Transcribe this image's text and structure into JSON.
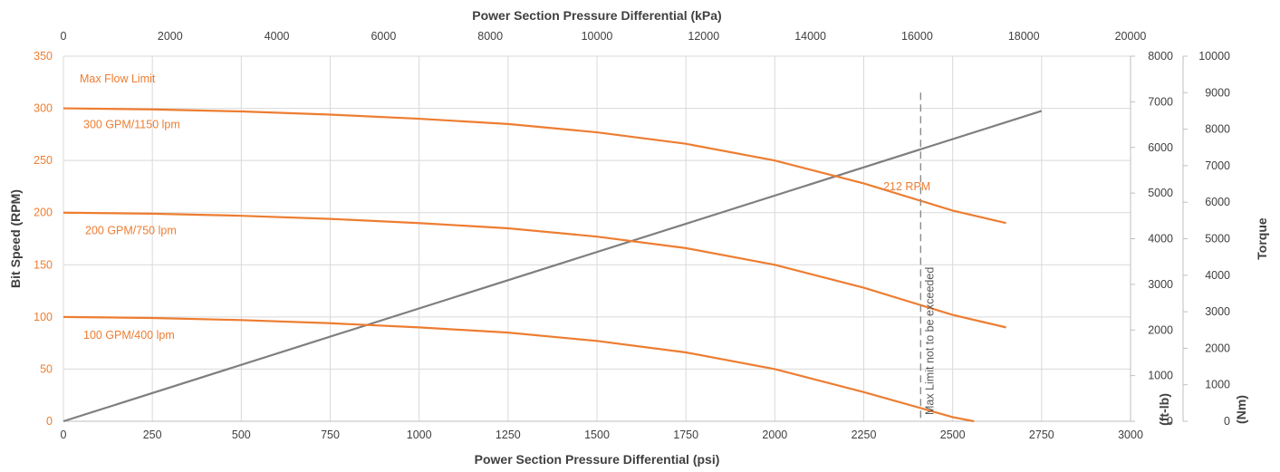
{
  "colors": {
    "speed": "#ed7d31",
    "torque": "#7f7f7f",
    "grid": "#d9d9d9",
    "axis_text": "#404040",
    "limit_line": "#8c8c8c"
  },
  "chart_data": {
    "type": "line",
    "title": "",
    "xlabel": "Power Section Pressure Differential (psi)",
    "x2label": "Power Section Pressure Differential (kPa)",
    "ylabel": "Bit Speed (RPM)",
    "y2label": "Torque",
    "y2unit_ftlb": "(ft-lb)",
    "y3unit_nm": "(Nm)",
    "xlim": [
      0,
      3000
    ],
    "x2lim": [
      0,
      20000
    ],
    "ylim": [
      0,
      350
    ],
    "y2lim": [
      0,
      8000
    ],
    "y3lim": [
      0,
      10000
    ],
    "x_ticks": [
      0,
      250,
      500,
      750,
      1000,
      1250,
      1500,
      1750,
      2000,
      2250,
      2500,
      2750,
      3000
    ],
    "x2_ticks": [
      0,
      2000,
      4000,
      6000,
      8000,
      10000,
      12000,
      14000,
      16000,
      18000,
      20000
    ],
    "y_ticks": [
      0,
      50,
      100,
      150,
      200,
      250,
      300,
      350
    ],
    "y2_ticks": [
      0,
      1000,
      2000,
      3000,
      4000,
      5000,
      6000,
      7000,
      8000
    ],
    "y3_ticks": [
      0,
      1000,
      2000,
      3000,
      4000,
      5000,
      6000,
      7000,
      8000,
      9000,
      10000
    ],
    "grid": true,
    "series": [
      {
        "name": "300 GPM/1150 lpm",
        "x": [
          0,
          250,
          500,
          750,
          1000,
          1250,
          1500,
          1750,
          2000,
          2250,
          2500,
          2650
        ],
        "values": [
          300,
          299,
          297,
          294,
          290,
          285,
          277,
          266,
          250,
          228,
          202,
          190
        ]
      },
      {
        "name": "200 GPM/750 lpm",
        "x": [
          0,
          250,
          500,
          750,
          1000,
          1250,
          1500,
          1750,
          2000,
          2250,
          2500,
          2650
        ],
        "values": [
          200,
          199,
          197,
          194,
          190,
          185,
          177,
          166,
          150,
          128,
          102,
          90
        ]
      },
      {
        "name": "100 GPM/400 lpm",
        "x": [
          0,
          250,
          500,
          750,
          1000,
          1250,
          1500,
          1750,
          2000,
          2250,
          2500,
          2560
        ],
        "values": [
          100,
          99,
          97,
          94,
          90,
          85,
          77,
          66,
          50,
          28,
          4,
          0
        ]
      }
    ],
    "torque_series": {
      "x": [
        0,
        2750
      ],
      "values_ftlb": [
        0,
        6800
      ]
    },
    "annotations": {
      "max_flow": "Max Flow Limit",
      "rpm_label": "212 RPM",
      "limit_text": "Max Limit not to be exceeded",
      "limit_x": 2410,
      "limit_ymax": 315
    }
  }
}
